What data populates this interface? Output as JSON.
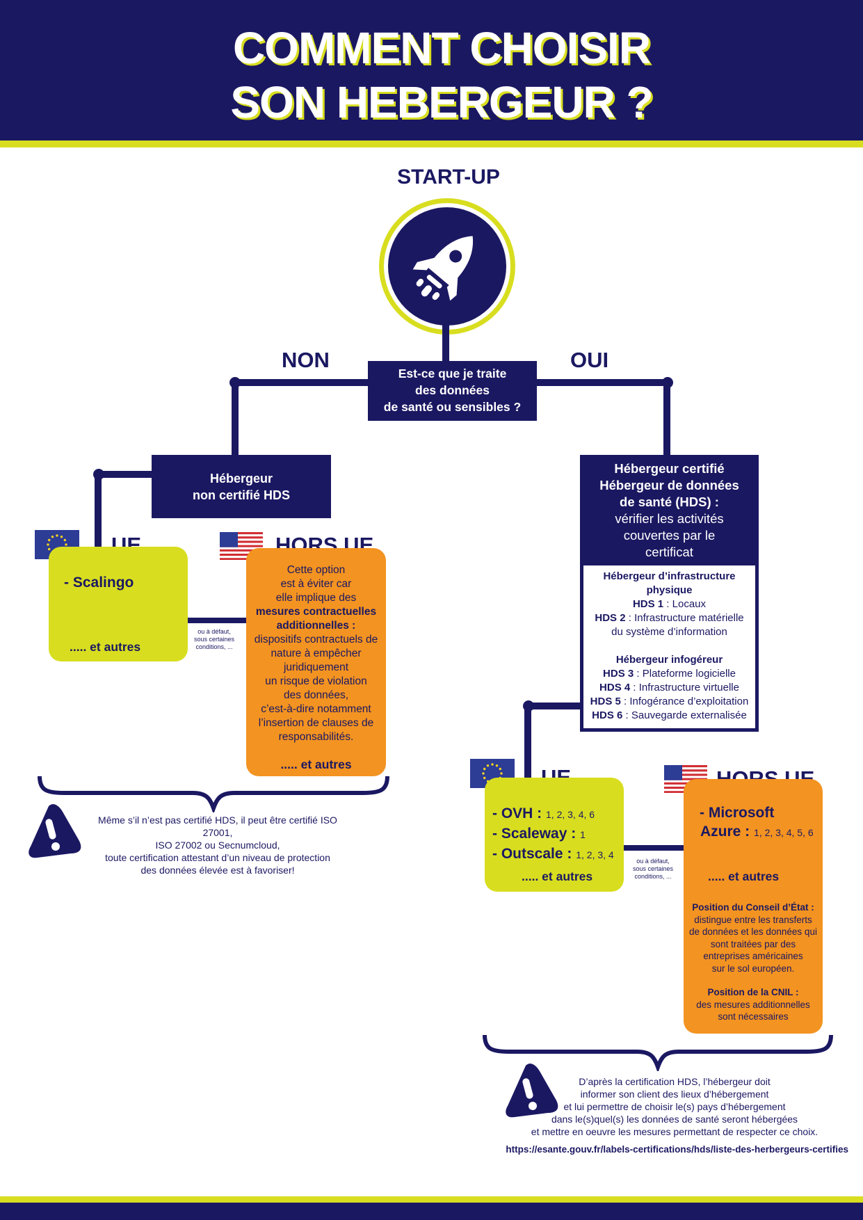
{
  "header": {
    "title_line1": "COMMENT CHOISIR",
    "title_line2": "SON HEBERGEUR ?"
  },
  "colors": {
    "navy": "#1b1862",
    "lime": "#d8de1f",
    "orange": "#f39321"
  },
  "start": {
    "label": "START-UP",
    "icon": "rocket-icon"
  },
  "question": {
    "line1": "Est-ce que je traite",
    "line2": "des données",
    "line3": "de santé ou sensibles ?",
    "no_label": "NON",
    "yes_label": "OUI"
  },
  "left": {
    "box_line1": "Hébergeur",
    "box_line2": "non certifié HDS",
    "ue_label": "UE",
    "hors_ue_label": "HORS UE",
    "ue_item": "- Scalingo",
    "ue_more": "..... et autres",
    "connector_note": [
      "ou à défaut,",
      "sous certaines",
      "conditions, ..."
    ],
    "hors_lines_a": [
      "Cette option",
      "est à éviter car",
      "elle implique des"
    ],
    "hors_bold": [
      "mesures contractuelles",
      "additionnelles :"
    ],
    "hors_lines_b": [
      "dispositifs contractuels de",
      "nature à empêcher",
      "juridiquement",
      "un risque de violation",
      "des données,",
      "c’est-à-dire notamment",
      "l’insertion de clauses de",
      "responsabilités."
    ],
    "hors_more": "..... et autres",
    "warning_lines": [
      "Même s’il n’est pas certifié HDS, il peut être certifié ISO 27001,",
      "ISO 27002 ou Secnumcloud,",
      "toute certification attestant d’un niveau de protection",
      "des données élevée est à favoriser!"
    ]
  },
  "right": {
    "box_bold": [
      "Hébergeur certifié",
      "Hébergeur de données",
      "de santé (HDS) :"
    ],
    "box_regular": [
      "vérifier les activités",
      "couvertes par le",
      "certificat"
    ],
    "infra_title": [
      "Hébergeur d’infrastructure",
      "physique"
    ],
    "infra_items": [
      {
        "code": "HDS 1",
        "sep": " : ",
        "text": "Locaux"
      },
      {
        "code": "HDS 2",
        "sep": " : ",
        "text": "Infrastructure matérielle"
      }
    ],
    "infra_item2_cont": "du système d’information",
    "info_title": "Hébergeur infogéreur",
    "info_items": [
      {
        "code": "HDS 3",
        "sep": " : ",
        "text": "Plateforme logicielle"
      },
      {
        "code": "HDS 4",
        "sep": " : ",
        "text": "Infrastructure virtuelle"
      },
      {
        "code": "HDS 5",
        "sep": " : ",
        "text": "Infogérance d’exploitation"
      },
      {
        "code": "HDS 6",
        "sep": " : ",
        "text": "Sauvegarde externalisée"
      }
    ],
    "ue_label": "UE",
    "hors_ue_label": "HORS UE",
    "ue_items": [
      {
        "name": "- OVH :",
        "codes": "1, 2, 3, 4, 6"
      },
      {
        "name": "- Scaleway :",
        "codes": "1"
      },
      {
        "name": "- Outscale :",
        "codes": "1, 2, 3, 4"
      }
    ],
    "ue_more": "..... et autres",
    "connector_note": [
      "ou à défaut,",
      "sous certaines",
      "conditions, ..."
    ],
    "hors_item_line1": "- Microsoft",
    "hors_item_line2": "Azure :",
    "hors_item_codes": "1, 2, 3, 4, 5, 6",
    "hors_more": "..... et autres",
    "conseil_title": "Position du Conseil d’État :",
    "conseil_lines": [
      "distingue entre  les transferts",
      "de données et les données qui",
      "sont traitées par des",
      "entreprises américaines",
      "sur le sol européen."
    ],
    "cnil_title": "Position de la CNIL :",
    "cnil_lines": [
      "des mesures additionnelles",
      "sont nécessaires"
    ],
    "warning_lines": [
      "D’après la certification HDS, l’hébergeur doit",
      "informer son client des lieux d’hébergement",
      "et lui permettre de choisir le(s) pays d’hébergement",
      "dans le(s)quel(s) les données de santé seront hébergées",
      "et mettre en oeuvre les mesures permettant de respecter ce choix."
    ],
    "link": "https://esante.gouv.fr/labels-certifications/hds/liste-des-herbergeurs-certifies"
  }
}
